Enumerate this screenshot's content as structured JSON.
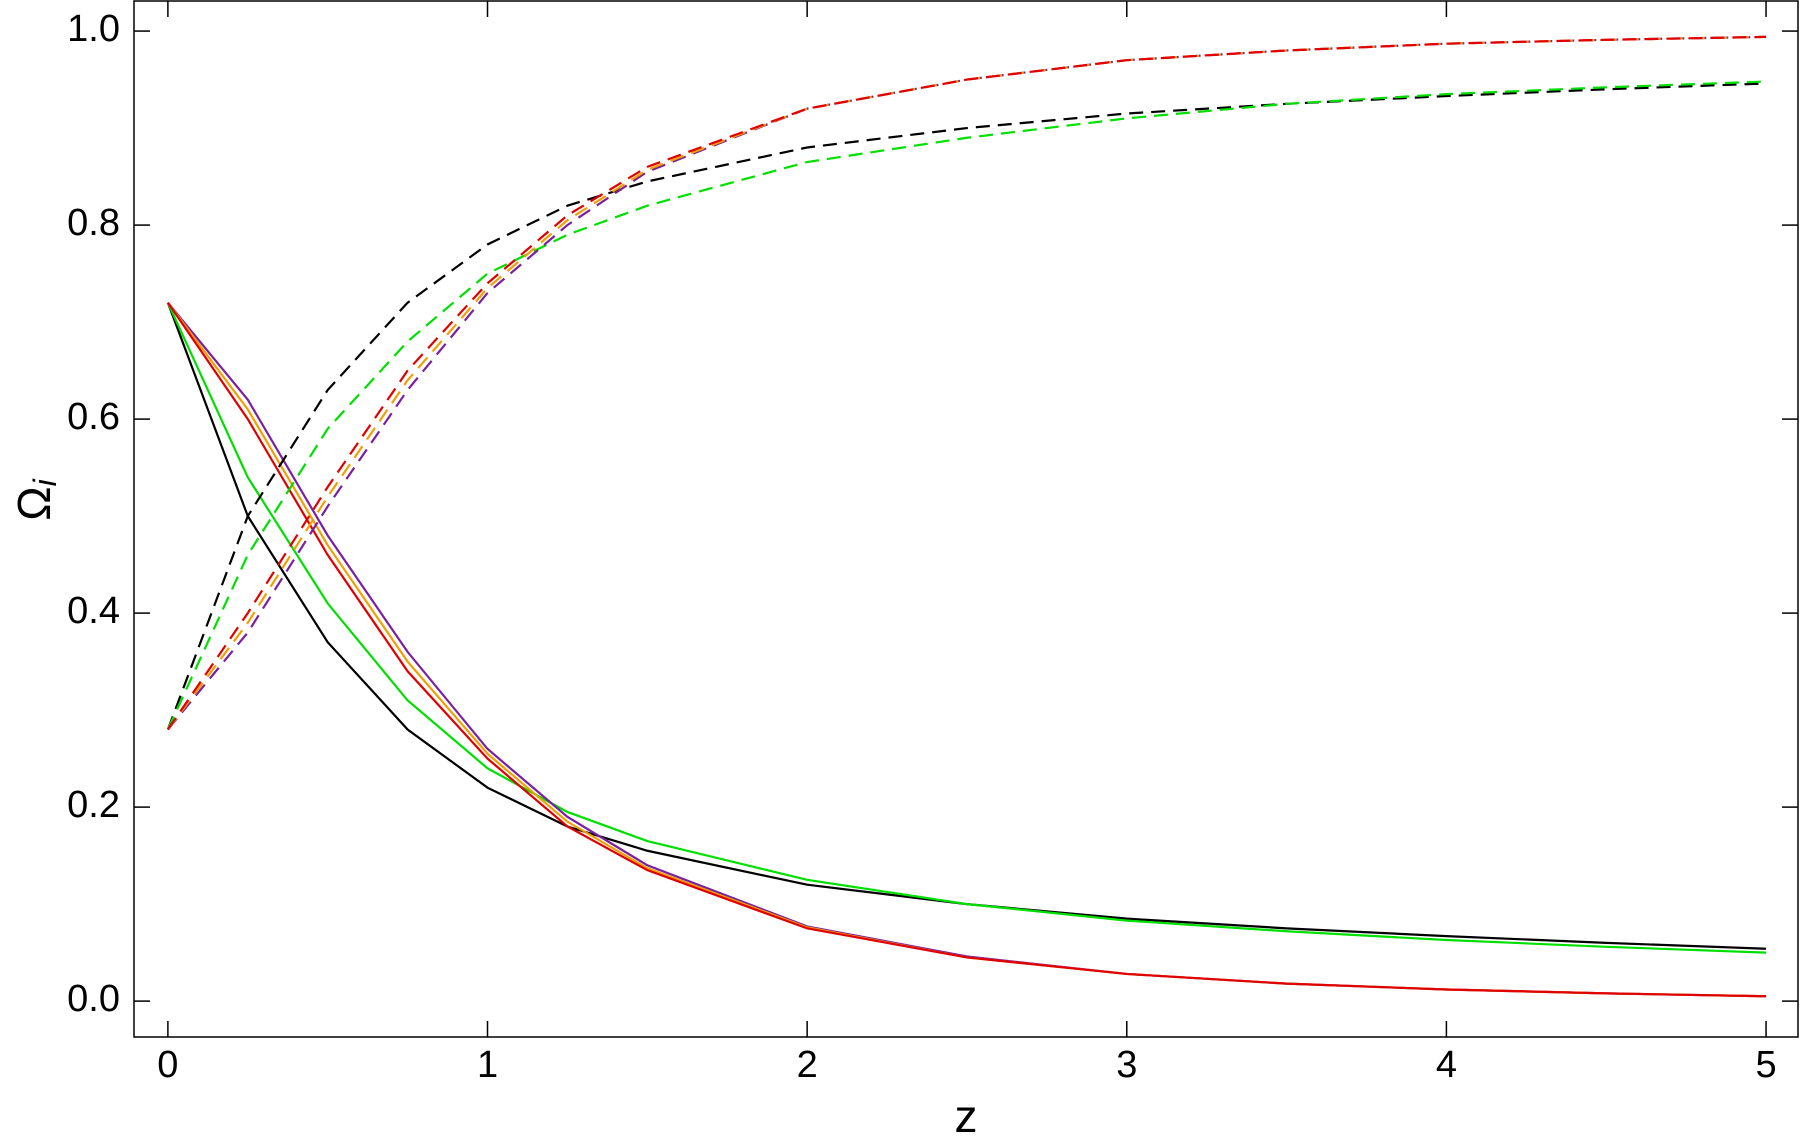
{
  "chart_data": {
    "type": "line",
    "xlabel": "z",
    "ylabel": {
      "symbol": "Ω",
      "subscript": "i"
    },
    "x": [
      0,
      0.25,
      0.5,
      0.75,
      1,
      1.25,
      1.5,
      2,
      2.5,
      3,
      3.5,
      4,
      4.5,
      5
    ],
    "xlim": [
      -0.106,
      5.1
    ],
    "xticks": [
      0,
      1,
      2,
      3,
      4,
      5
    ],
    "ylim": [
      -0.037,
      1.031
    ],
    "yticks": [
      {
        "value": 0,
        "label": "0.0"
      },
      0.2,
      0.4,
      0.6,
      0.8,
      {
        "value": 1,
        "label": "1.0"
      }
    ],
    "series": [
      {
        "color": "#000000",
        "dashed": false,
        "values": [
          0.72,
          0.5,
          0.37,
          0.28,
          0.22,
          0.18,
          0.155,
          0.12,
          0.1,
          0.085,
          0.075,
          0.067,
          0.06,
          0.054
        ]
      },
      {
        "color": "#00e000",
        "dashed": false,
        "values": [
          0.72,
          0.54,
          0.41,
          0.31,
          0.24,
          0.195,
          0.165,
          0.125,
          0.1,
          0.083,
          0.072,
          0.063,
          0.056,
          0.05
        ]
      },
      {
        "color": "#7a1fa2",
        "dashed": false,
        "values": [
          0.72,
          0.62,
          0.48,
          0.36,
          0.26,
          0.19,
          0.14,
          0.077,
          0.046,
          0.028,
          0.018,
          0.012,
          0.008,
          0.005
        ]
      },
      {
        "color": "#f0a000",
        "dashed": false,
        "values": [
          0.72,
          0.61,
          0.47,
          0.35,
          0.255,
          0.185,
          0.137,
          0.076,
          0.045,
          0.028,
          0.018,
          0.012,
          0.008,
          0.005
        ]
      },
      {
        "color": "#e00000",
        "dashed": false,
        "values": [
          0.72,
          0.6,
          0.46,
          0.34,
          0.25,
          0.18,
          0.135,
          0.075,
          0.045,
          0.028,
          0.018,
          0.012,
          0.008,
          0.005
        ]
      },
      {
        "color": "#000000",
        "dashed": true,
        "values": [
          0.28,
          0.5,
          0.63,
          0.72,
          0.78,
          0.82,
          0.845,
          0.88,
          0.9,
          0.915,
          0.925,
          0.933,
          0.94,
          0.946
        ]
      },
      {
        "color": "#00e000",
        "dashed": true,
        "values": [
          0.28,
          0.46,
          0.59,
          0.68,
          0.75,
          0.79,
          0.82,
          0.865,
          0.89,
          0.91,
          0.925,
          0.935,
          0.942,
          0.948
        ]
      },
      {
        "color": "#7a1fa2",
        "dashed": true,
        "values": [
          0.28,
          0.38,
          0.51,
          0.63,
          0.73,
          0.8,
          0.855,
          0.92,
          0.95,
          0.97,
          0.98,
          0.987,
          0.991,
          0.994
        ]
      },
      {
        "color": "#f0a000",
        "dashed": true,
        "values": [
          0.28,
          0.39,
          0.52,
          0.64,
          0.735,
          0.805,
          0.857,
          0.92,
          0.95,
          0.97,
          0.98,
          0.987,
          0.991,
          0.994
        ]
      },
      {
        "color": "#e00000",
        "dashed": true,
        "values": [
          0.28,
          0.4,
          0.53,
          0.65,
          0.74,
          0.81,
          0.86,
          0.92,
          0.95,
          0.97,
          0.98,
          0.987,
          0.991,
          0.994
        ]
      }
    ]
  }
}
